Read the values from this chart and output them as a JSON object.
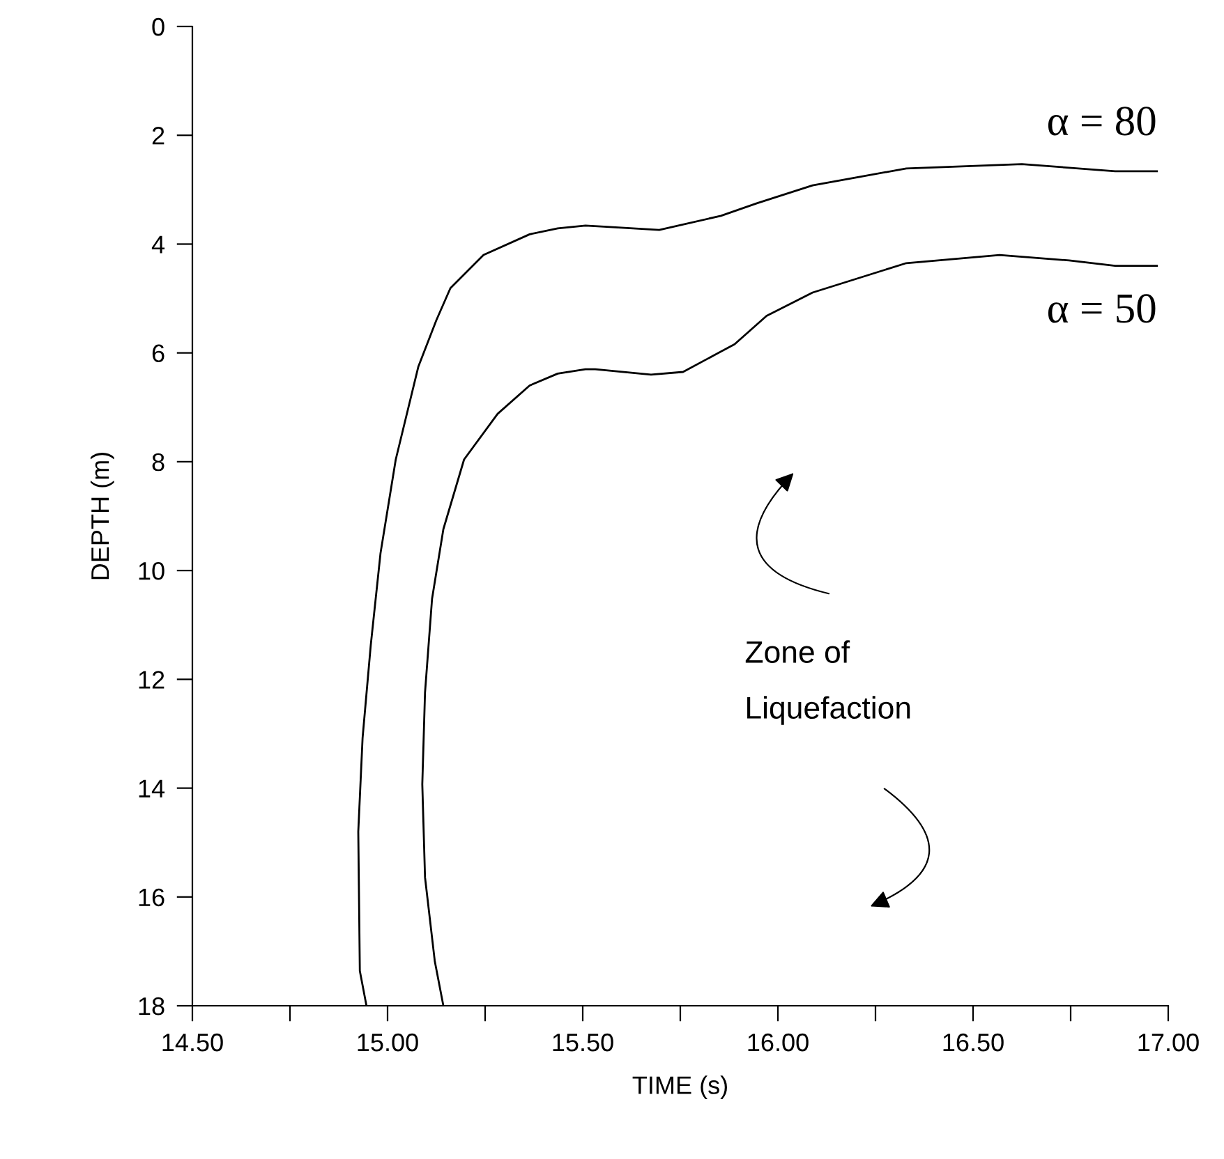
{
  "chart_data": {
    "type": "line",
    "xlabel": "TIME (s)",
    "ylabel": "DEPTH (m)",
    "series": [
      {
        "name": "α = 80",
        "color": "#000000",
        "x": [
          14.946,
          14.929,
          14.925,
          14.936,
          14.957,
          14.982,
          15.021,
          15.079,
          15.125,
          15.161,
          15.246,
          15.364,
          15.436,
          15.507,
          15.554,
          15.696,
          15.854,
          15.946,
          16.089,
          16.329,
          16.625,
          16.864,
          16.971
        ],
        "values": [
          18,
          17.36,
          14.8,
          13.08,
          11.37,
          9.68,
          7.96,
          6.25,
          5.4,
          4.81,
          4.2,
          3.82,
          3.71,
          3.66,
          3.68,
          3.74,
          3.48,
          3.25,
          2.92,
          2.61,
          2.53,
          2.66,
          2.66
        ]
      },
      {
        "name": "α = 50",
        "color": "#000000",
        "x": [
          15.143,
          15.121,
          15.096,
          15.089,
          15.096,
          15.114,
          15.143,
          15.196,
          15.282,
          15.364,
          15.436,
          15.507,
          15.532,
          15.675,
          15.757,
          15.889,
          15.971,
          16.089,
          16.329,
          16.568,
          16.746,
          16.864,
          16.971
        ],
        "values": [
          18,
          17.18,
          15.64,
          13.93,
          12.24,
          10.52,
          9.24,
          7.96,
          7.12,
          6.6,
          6.38,
          6.3,
          6.3,
          6.4,
          6.35,
          5.84,
          5.32,
          4.89,
          4.35,
          4.2,
          4.3,
          4.4,
          4.4
        ]
      }
    ],
    "xlim": [
      14.5,
      17.0
    ],
    "ylim": [
      18,
      0
    ],
    "xticks": [
      {
        "value": 14.5,
        "label": "14.50"
      },
      {
        "value": 14.75,
        "label": null
      },
      {
        "value": 15.0,
        "label": "15.00"
      },
      {
        "value": 15.25,
        "label": null
      },
      {
        "value": 15.5,
        "label": "15.50"
      },
      {
        "value": 15.75,
        "label": null
      },
      {
        "value": 16.0,
        "label": "16.00"
      },
      {
        "value": 16.25,
        "label": null
      },
      {
        "value": 16.5,
        "label": "16.50"
      },
      {
        "value": 16.75,
        "label": null
      },
      {
        "value": 17.0,
        "label": "17.00"
      }
    ],
    "yticks": [
      0,
      2,
      4,
      6,
      8,
      10,
      12,
      14,
      16,
      18
    ],
    "annotations": [
      "Zone of\nLiquefaction"
    ],
    "grid": false,
    "legend": false,
    "marker": "none",
    "line_style": "solid"
  }
}
